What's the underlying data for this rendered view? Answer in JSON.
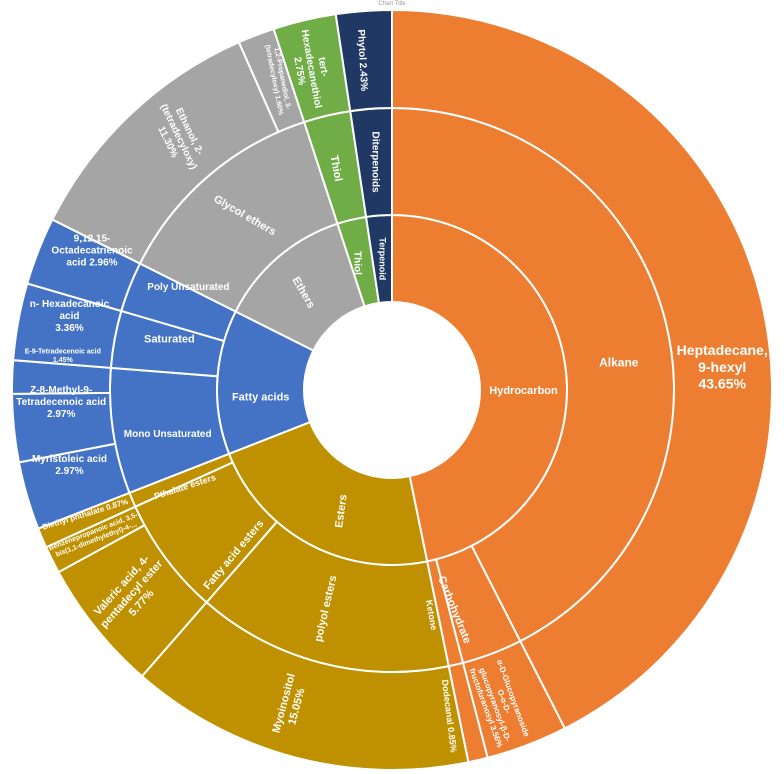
{
  "chart_data": {
    "type": "sunburst",
    "title": "Chart Title",
    "center_hole": true,
    "rings": [
      "class",
      "subclass",
      "compound"
    ],
    "slices": [
      {
        "label": "Heptadecane, 9-hexyl 43.65%",
        "value": 43.65,
        "path": [
          "Hydrocarbon",
          "Alkane"
        ],
        "color": "#ED7D31"
      },
      {
        "label": "α-D-Glucopyranoside O-α-D-fructofuranosyl-β-D-glucopyranosyl 3.56%",
        "value": 3.56,
        "path": [
          "Hydrocarbon",
          "Carbohydrate"
        ],
        "color": "#ED7D31"
      },
      {
        "label": "Dodecanal 0.85%",
        "value": 0.85,
        "path": [
          "Hydrocarbon",
          "Ketone"
        ],
        "color": "#ED7D31"
      },
      {
        "label": "Myoinositol 15.05%",
        "value": 15.05,
        "path": [
          "Esters",
          "polyol esters"
        ],
        "color": "#BF9000"
      },
      {
        "label": "Valeric acid, 4-pentadecyl ester 5.77%",
        "value": 5.77,
        "path": [
          "Esters",
          "Fatty acid esters"
        ],
        "color": "#BF9000"
      },
      {
        "label": "Benzenepropanoic acid, 3,5-bis(1,1-dimethylethyl)-4-...",
        "value": 1.2,
        "path": [
          "Esters",
          "Fatty acid esters"
        ],
        "color": "#BF9000"
      },
      {
        "label": "Diethyl phthalate 0.87%",
        "value": 0.87,
        "path": [
          "Esters",
          "Pthalate esters"
        ],
        "color": "#BF9000"
      },
      {
        "label": "Myristoleic acid 2.97%",
        "value": 2.97,
        "path": [
          "Fatty acids",
          "Mono Unsaturated"
        ],
        "color": "#4472C4"
      },
      {
        "label": "Z-8-Methyl-9-Tetradecenoic acid 2.97%",
        "value": 2.97,
        "path": [
          "Fatty acids",
          "Mono Unsaturated"
        ],
        "color": "#4472C4"
      },
      {
        "label": "E-9-Tetradecenoic acid 1.45%",
        "value": 1.45,
        "path": [
          "Fatty acids",
          "Mono Unsaturated"
        ],
        "color": "#4472C4"
      },
      {
        "label": "n- Hexadecanoic acid 3.36%",
        "value": 3.36,
        "path": [
          "Fatty acids",
          "Saturated"
        ],
        "color": "#4472C4"
      },
      {
        "label": "9,12,15-Octadecatrienoic acid 2.96%",
        "value": 2.96,
        "path": [
          "Fatty acids",
          "Poly Unsaturated"
        ],
        "color": "#4472C4"
      },
      {
        "label": "Ethanol, 2-(tetradecyloxy) 11.30%",
        "value": 11.3,
        "path": [
          "Ethers",
          "Glycol ethers"
        ],
        "color": "#A5A5A5"
      },
      {
        "label": "1,2-Propanediol, 3-(tetradecyloxy) 1.60%",
        "value": 1.6,
        "path": [
          "Ethers",
          "Glycol ethers"
        ],
        "color": "#A5A5A5"
      },
      {
        "label": "tert-Hexadecanethiol 2.75%",
        "value": 2.75,
        "path": [
          "Thiol",
          "Thiol"
        ],
        "color": "#70AD47"
      },
      {
        "label": "Phytol 2.43%",
        "value": 2.43,
        "path": [
          "Terpenoid",
          "Diterpenoids"
        ],
        "color": "#203864"
      }
    ],
    "categories": [
      {
        "name": "Hydrocarbon",
        "color": "#ED7D31"
      },
      {
        "name": "Esters",
        "color": "#BF9000"
      },
      {
        "name": "Fatty acids",
        "color": "#4472C4"
      },
      {
        "name": "Ethers",
        "color": "#A5A5A5"
      },
      {
        "name": "Thiol",
        "color": "#70AD47"
      },
      {
        "name": "Terpenoid",
        "color": "#203864"
      }
    ]
  },
  "labels": {
    "inner": [
      {
        "key": "hydrocarbon",
        "text": [
          "Hydrocarbon"
        ],
        "fs": 11,
        "rot": 0,
        "dir": 90
      },
      {
        "key": "esters",
        "text": [
          "Esters"
        ],
        "fs": 11,
        "rot": -82,
        "dir": 203
      },
      {
        "key": "fatty-acids",
        "text": [
          "Fatty acids"
        ],
        "fs": 11,
        "rot": 0,
        "dir": 267
      },
      {
        "key": "ethers",
        "text": [
          "Ethers"
        ],
        "fs": 11,
        "rot": 60,
        "dir": 318
      },
      {
        "key": "thiol",
        "text": [
          "Thiol"
        ],
        "fs": 10,
        "rot": 90,
        "dir": 345
      },
      {
        "key": "terpenoid",
        "text": [
          "Terpenoid"
        ],
        "fs": 9,
        "rot": 90,
        "dir": 356
      }
    ],
    "middle": [
      {
        "key": "alkane",
        "text": [
          "Alkane"
        ],
        "fs": 12,
        "rot": 0,
        "dir": 83
      },
      {
        "key": "carbohydrate",
        "text": [
          "Carbohydrate"
        ],
        "fs": 11,
        "rot": 68,
        "dir": 164
      },
      {
        "key": "ketone",
        "text": [
          "Ketone"
        ],
        "fs": 9,
        "rot": 80,
        "dir": 170
      },
      {
        "key": "polyol-esters",
        "text": [
          "polyol esters"
        ],
        "fs": 11,
        "rot": -77,
        "dir": 197
      },
      {
        "key": "fatty-acid-esters",
        "text": [
          "Fatty acid esters"
        ],
        "fs": 11,
        "rot": -50,
        "dir": 224
      },
      {
        "key": "pthalate-esters",
        "text": [
          "Pthalate esters"
        ],
        "fs": 9,
        "rot": -18,
        "dir": 245
      },
      {
        "key": "mono-unsaturated",
        "text": [
          "Mono Unsaturated"
        ],
        "fs": 10,
        "rot": 0,
        "dir": 259
      },
      {
        "key": "saturated",
        "text": [
          "Saturated"
        ],
        "fs": 11,
        "rot": 0,
        "dir": 283
      },
      {
        "key": "poly-unsaturated",
        "text": [
          "Poly Unsaturated"
        ],
        "fs": 10,
        "rot": 0,
        "dir": 297
      },
      {
        "key": "glycol-ethers",
        "text": [
          "Glycol ethers"
        ],
        "fs": 11,
        "rot": 30,
        "dir": 320
      },
      {
        "key": "thiol-2",
        "text": [
          "Thiol"
        ],
        "fs": 11,
        "rot": 80,
        "dir": 346
      },
      {
        "key": "diterpenoids",
        "text": [
          "Diterpenoids"
        ],
        "fs": 10,
        "rot": 90,
        "dir": 356
      }
    ],
    "outer": [
      {
        "key": "heptadecane",
        "text": [
          "Heptadecane,",
          "9-hexyl",
          "43.65%"
        ],
        "fs": 14,
        "rot": 0,
        "dir": 86
      },
      {
        "key": "glucopyranoside",
        "text": [
          "α-D-Glucopyranoside",
          "O-α-D-",
          "glucopyranosyl-β-D-",
          "fructofuranosyl 3.56%"
        ],
        "fs": 8,
        "rot": 70,
        "dir": 161
      },
      {
        "key": "dodecanal",
        "text": [
          "Dodecanal 0.85%"
        ],
        "fs": 9,
        "rot": 83,
        "dir": 170
      },
      {
        "key": "myoinositol",
        "text": [
          "Myoinositol",
          "15.05%"
        ],
        "fs": 11,
        "rot": -75,
        "dir": 198
      },
      {
        "key": "valeric",
        "text": [
          "Valeric acid, 4-",
          "pentadecyl ester",
          "5.77%"
        ],
        "fs": 11,
        "rot": -48,
        "dir": 232
      },
      {
        "key": "benzenepropanoic",
        "text": [
          "Benzenepropanoic acid, 3,5-",
          "bis(1,1-dimethylethyl)-4-..."
        ],
        "fs": 7,
        "rot": -21,
        "dir": 244
      },
      {
        "key": "diethyl-phthalate",
        "text": [
          "Diethyl phthalate 0.87%"
        ],
        "fs": 8,
        "rot": -17,
        "dir": 248
      },
      {
        "key": "myristoleic",
        "text": [
          "Myristoleic acid",
          "2.97%"
        ],
        "fs": 10,
        "rot": 0,
        "dir": 257
      },
      {
        "key": "z8-methyl",
        "text": [
          "Z-8-Methyl-9-",
          "Tetradecenoic acid",
          "2.97%"
        ],
        "fs": 10,
        "rot": 0,
        "dir": 268
      },
      {
        "key": "e9-tetradecenoic",
        "text": [
          "E-9-Tetradecenoic acid",
          "1.45%"
        ],
        "fs": 7,
        "rot": 0,
        "dir": 276
      },
      {
        "key": "hexadecanoic",
        "text": [
          "n- Hexadecanoic",
          "acid",
          "3.36%"
        ],
        "fs": 10,
        "rot": 0,
        "dir": 283
      },
      {
        "key": "octadecatrienoic",
        "text": [
          "9,12,15-",
          "Octadecatrienoic",
          "acid 2.96%"
        ],
        "fs": 10,
        "rot": 0,
        "dir": 295
      },
      {
        "key": "ethanol",
        "text": [
          "Ethanol, 2-",
          "(tetradecyloxy)",
          "11.30%"
        ],
        "fs": 10,
        "rot": 64,
        "dir": 320
      },
      {
        "key": "propanediol",
        "text": [
          "1,2-Propanediol, 3-",
          "(tetradecyloxy) 1.60%"
        ],
        "fs": 7,
        "rot": 79,
        "dir": 340
      },
      {
        "key": "hexadecanethiol",
        "text": [
          "tert-",
          "Hexadecanethiol",
          "2.75%"
        ],
        "fs": 10,
        "rot": 80,
        "dir": 346
      },
      {
        "key": "phytol",
        "text": [
          "Phytol 2.43%"
        ],
        "fs": 10,
        "rot": 87,
        "dir": 355
      }
    ]
  }
}
